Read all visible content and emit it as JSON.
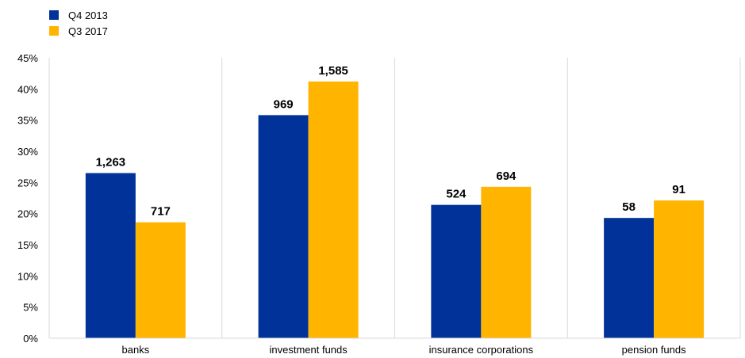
{
  "chart_data": {
    "type": "bar",
    "categories": [
      "banks",
      "investment funds",
      "insurance corporations",
      "pension funds"
    ],
    "series": [
      {
        "name": "Q4 2013",
        "color": "#003299",
        "values": [
          26.5,
          35.8,
          21.4,
          19.3
        ],
        "data_labels": [
          "1,263",
          "969",
          "524",
          "58"
        ]
      },
      {
        "name": "Q3 2017",
        "color": "#ffb400",
        "values": [
          18.6,
          41.2,
          24.3,
          22.1
        ],
        "data_labels": [
          "717",
          "1,585",
          "694",
          "91"
        ]
      }
    ],
    "ylim": [
      0,
      45
    ],
    "y_ticks": [
      0,
      5,
      10,
      15,
      20,
      25,
      30,
      35,
      40,
      45
    ],
    "y_tick_labels": [
      "0%",
      "5%",
      "10%",
      "15%",
      "20%",
      "25%",
      "30%",
      "35%",
      "40%",
      "45%"
    ],
    "grid": "vertical separators between categories",
    "legend_position": "top-left",
    "title": "",
    "xlabel": "",
    "ylabel": ""
  }
}
